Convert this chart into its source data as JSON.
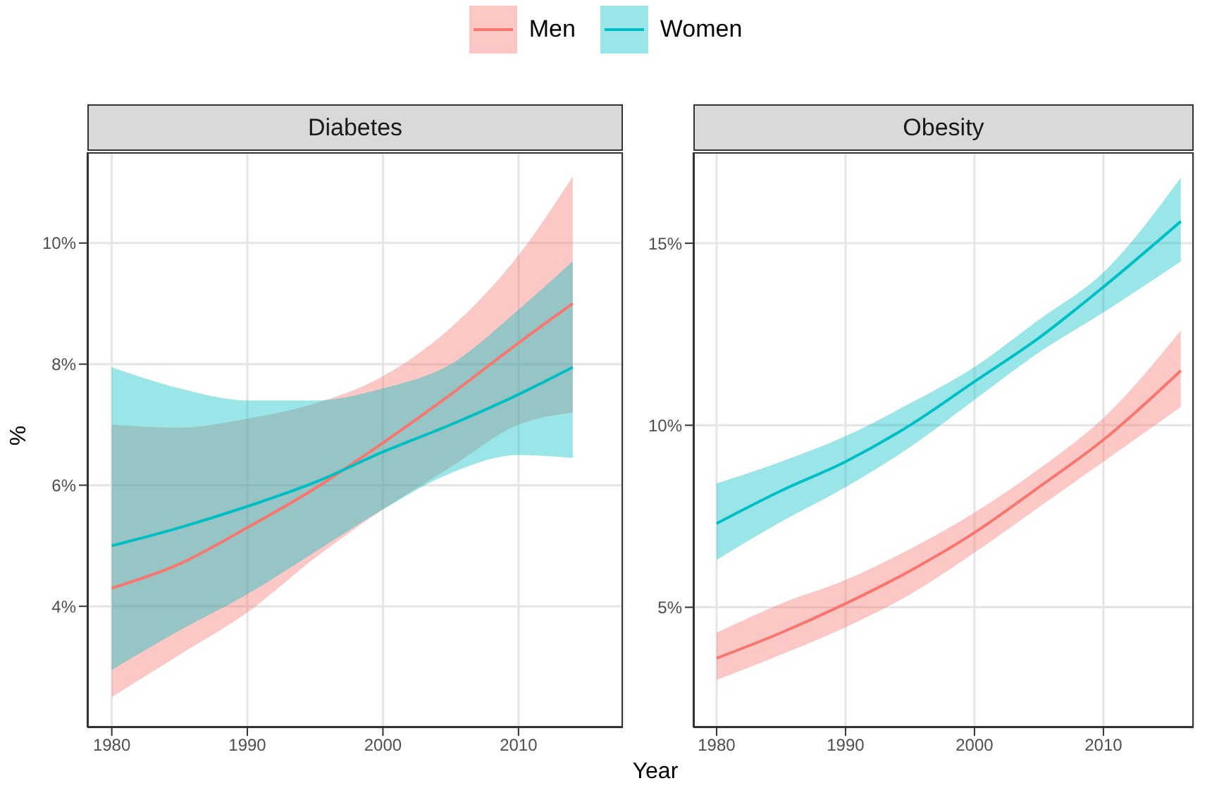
{
  "chart_data": [
    {
      "type": "line",
      "title": "Diabetes",
      "xlabel": "Year",
      "ylabel": "%",
      "legend": "top",
      "grid": true,
      "x": [
        1980,
        1985,
        1990,
        1995,
        2000,
        2005,
        2010,
        2014
      ],
      "series": [
        {
          "name": "Men",
          "color": "#f8766d",
          "values": [
            4.3,
            4.7,
            5.3,
            5.95,
            6.7,
            7.5,
            8.35,
            9.0
          ],
          "lower": [
            2.5,
            3.2,
            3.9,
            4.8,
            5.6,
            6.3,
            7.0,
            7.2
          ],
          "upper": [
            7.0,
            6.95,
            7.1,
            7.35,
            7.8,
            8.6,
            9.8,
            11.1
          ]
        },
        {
          "name": "Women",
          "color": "#00bfc4",
          "values": [
            5.0,
            5.3,
            5.65,
            6.05,
            6.55,
            7.0,
            7.5,
            7.95
          ],
          "lower": [
            2.95,
            3.6,
            4.2,
            4.9,
            5.6,
            6.2,
            6.5,
            6.45
          ],
          "upper": [
            7.95,
            7.6,
            7.4,
            7.4,
            7.6,
            8.0,
            8.9,
            9.7
          ]
        }
      ],
      "xlim": [
        1978.2,
        2017.7
      ],
      "xticks": [
        1980,
        1990,
        2000,
        2010
      ],
      "ylim": [
        2.0,
        11.5
      ],
      "yticks": [
        {
          "value": 4,
          "label": "4%"
        },
        {
          "value": 6,
          "label": "6%"
        },
        {
          "value": 8,
          "label": "8%"
        },
        {
          "value": 10,
          "label": "10%"
        }
      ]
    },
    {
      "type": "line",
      "title": "Obesity",
      "grid": true,
      "x": [
        1980,
        1985,
        1990,
        1995,
        2000,
        2005,
        2010,
        2016
      ],
      "series": [
        {
          "color": "#f8766d",
          "values": [
            3.6,
            4.3,
            5.1,
            6.0,
            7.05,
            8.3,
            9.6,
            11.5
          ],
          "lower": [
            3.0,
            3.7,
            4.45,
            5.35,
            6.5,
            7.75,
            9.0,
            10.5
          ],
          "upper": [
            4.3,
            5.1,
            5.75,
            6.6,
            7.6,
            8.8,
            10.2,
            12.6
          ]
        },
        {
          "color": "#00bfc4",
          "values": [
            7.3,
            8.2,
            9.0,
            10.0,
            11.2,
            12.4,
            13.8,
            15.6
          ],
          "lower": [
            6.3,
            7.35,
            8.3,
            9.4,
            10.7,
            12.0,
            13.1,
            14.5
          ],
          "upper": [
            8.4,
            9.0,
            9.7,
            10.6,
            11.6,
            12.9,
            14.2,
            16.8
          ]
        }
      ],
      "xlim": [
        1978.2,
        2017.0
      ],
      "xticks": [
        1980,
        1990,
        2000,
        2010
      ],
      "ylim": [
        1.7,
        17.5
      ],
      "yticks": [
        {
          "value": 5,
          "label": "5%"
        },
        {
          "value": 10,
          "label": "10%"
        },
        {
          "value": 15,
          "label": "15%"
        }
      ]
    }
  ]
}
